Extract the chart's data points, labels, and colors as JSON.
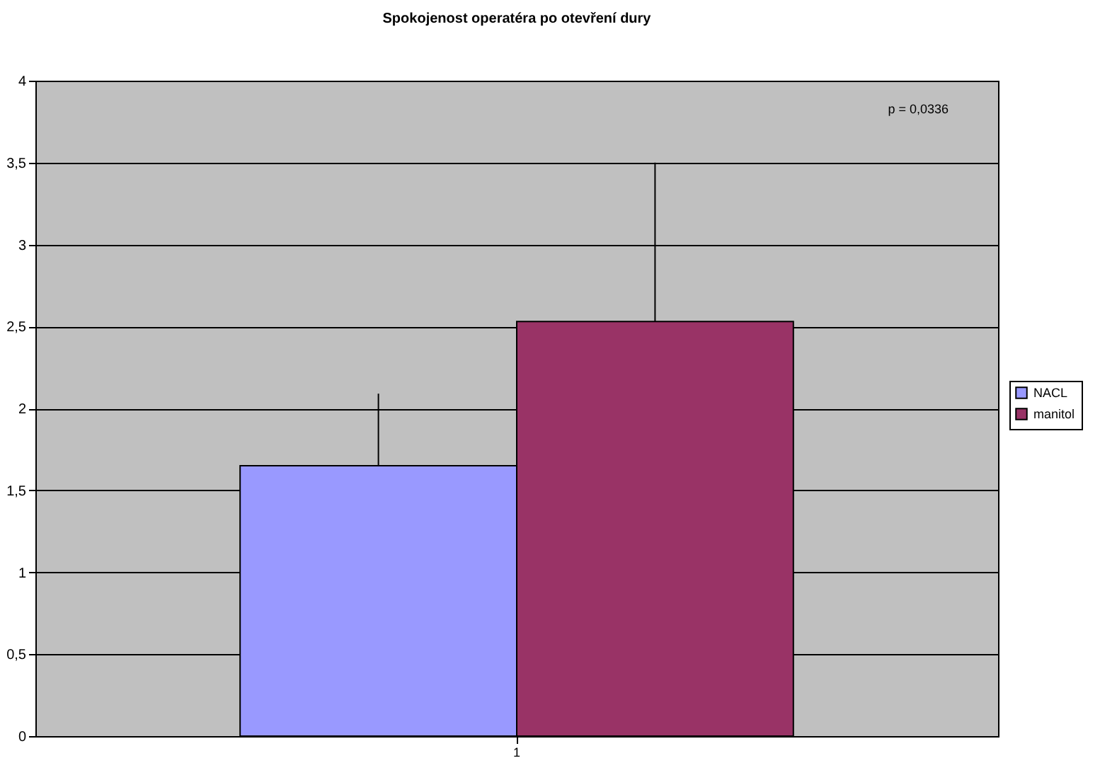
{
  "chart_data": {
    "type": "bar",
    "title": "Spokojenost operatéra po otevření dury",
    "categories": [
      "1"
    ],
    "series": [
      {
        "name": "NACL",
        "color": "#9999ff",
        "values": [
          1.65
        ],
        "errors": [
          [
            1.65,
            2.09
          ]
        ]
      },
      {
        "name": "manitol",
        "color": "#993366",
        "values": [
          2.53
        ],
        "errors": [
          [
            2.53,
            3.5
          ]
        ]
      }
    ],
    "ylim": [
      0,
      4
    ],
    "yticks": [
      0,
      {
        "value": 0.5,
        "label": "0,5"
      },
      1,
      {
        "value": 1.5,
        "label": "1,5"
      },
      2,
      {
        "value": 2.5,
        "label": "2,5"
      },
      3,
      {
        "value": 3.5,
        "label": "3,5"
      },
      4
    ],
    "grid": "y",
    "legend": "right",
    "annotations": [
      "p = 0,0336"
    ]
  }
}
